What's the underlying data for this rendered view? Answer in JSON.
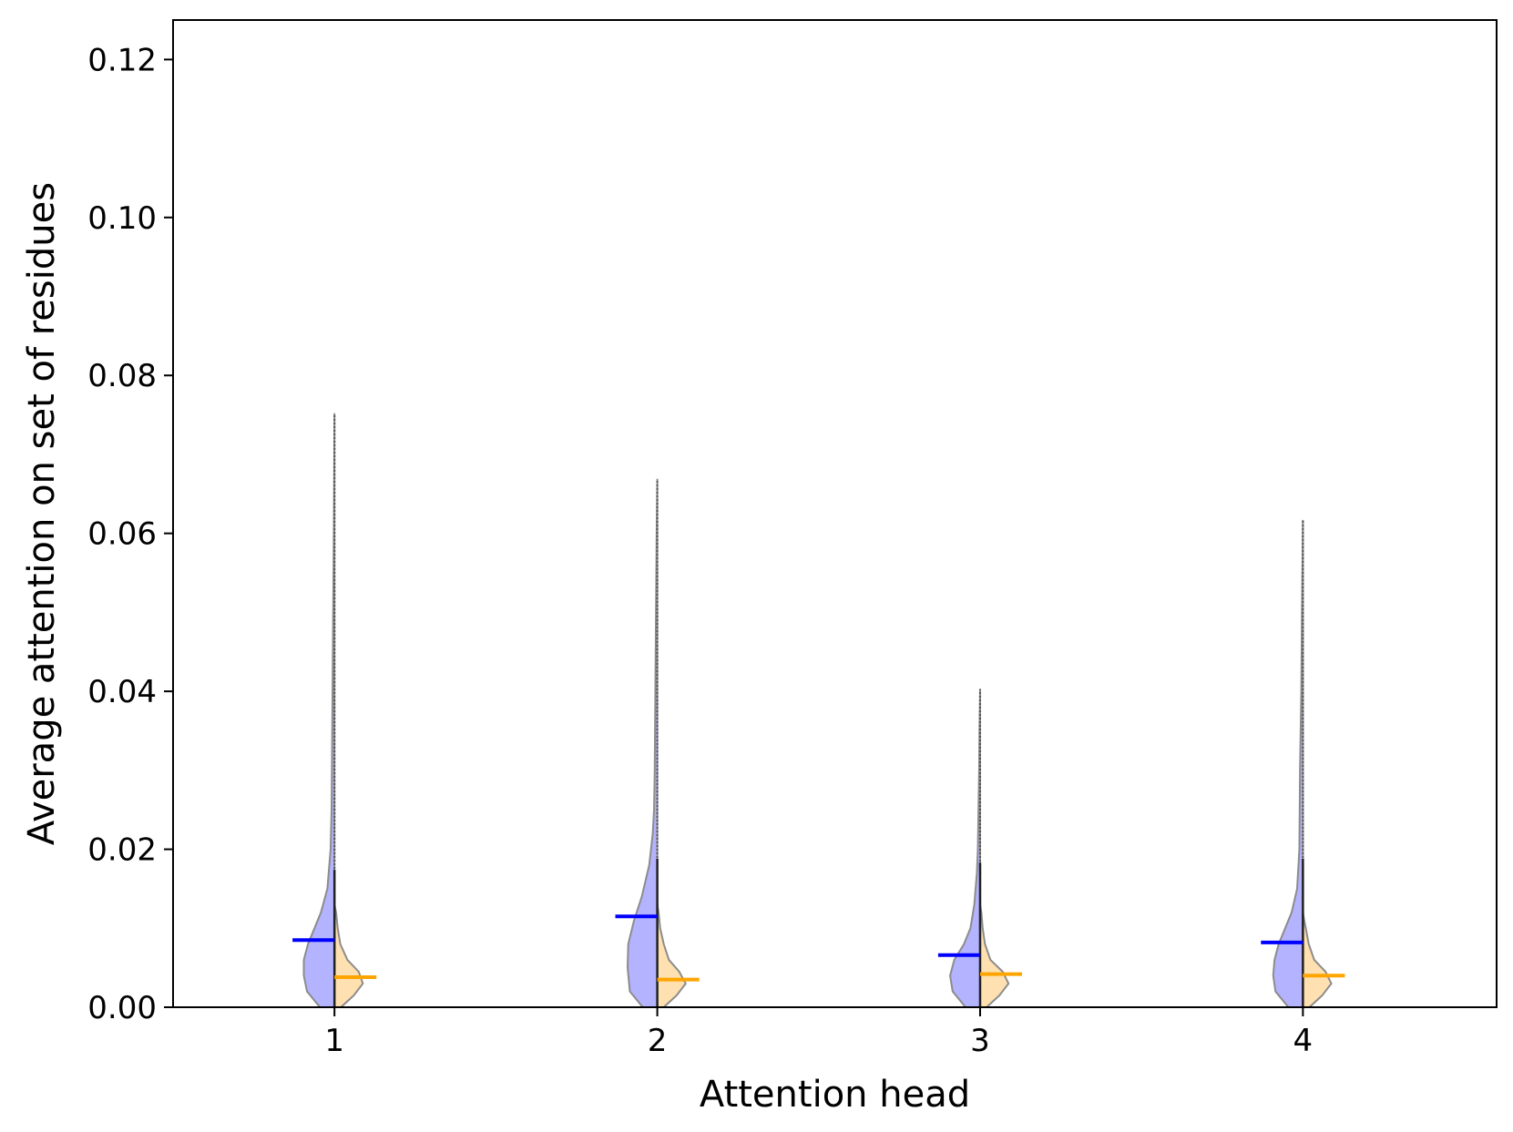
{
  "chart_data": {
    "type": "violin",
    "xlabel": "Attention head",
    "ylabel": "Average attention on set of residues",
    "ylim": [
      0,
      0.125
    ],
    "yticks": [
      "0.00",
      "0.02",
      "0.04",
      "0.06",
      "0.08",
      "0.10",
      "0.12"
    ],
    "categories": [
      "1",
      "2",
      "3",
      "4"
    ],
    "grid": false,
    "legend": "none",
    "colors": {
      "left_fill": "#b3b3ff",
      "left_median": "#0000ff",
      "right_fill": "#ffe0b0",
      "right_median": "#ffa500",
      "outline": "#8c8c8c"
    },
    "series": [
      {
        "side": "left",
        "medians": [
          0.0085,
          0.0115,
          0.0066,
          0.0082
        ],
        "maxima": [
          0.0752,
          0.0669,
          0.0403,
          0.0617
        ],
        "quartile_top": [
          0.0174,
          0.0188,
          0.0183,
          0.0188
        ],
        "profiles": [
          [
            [
              0,
              0.045
            ],
            [
              0.002,
              0.085
            ],
            [
              0.004,
              0.095
            ],
            [
              0.006,
              0.095
            ],
            [
              0.008,
              0.082
            ],
            [
              0.01,
              0.062
            ],
            [
              0.012,
              0.042
            ],
            [
              0.015,
              0.022
            ],
            [
              0.02,
              0.012
            ],
            [
              0.025,
              0.009
            ],
            [
              0.03,
              0.008
            ],
            [
              0.04,
              0.006
            ],
            [
              0.05,
              0.004
            ],
            [
              0.06,
              0.002
            ],
            [
              0.0752,
              0
            ]
          ],
          [
            [
              0,
              0.045
            ],
            [
              0.002,
              0.085
            ],
            [
              0.005,
              0.092
            ],
            [
              0.008,
              0.09
            ],
            [
              0.011,
              0.072
            ],
            [
              0.014,
              0.048
            ],
            [
              0.018,
              0.025
            ],
            [
              0.022,
              0.014
            ],
            [
              0.025,
              0.01
            ],
            [
              0.03,
              0.008
            ],
            [
              0.04,
              0.006
            ],
            [
              0.05,
              0.004
            ],
            [
              0.06,
              0.002
            ],
            [
              0.0669,
              0
            ]
          ],
          [
            [
              0,
              0.045
            ],
            [
              0.002,
              0.085
            ],
            [
              0.004,
              0.093
            ],
            [
              0.006,
              0.08
            ],
            [
              0.008,
              0.05
            ],
            [
              0.01,
              0.03
            ],
            [
              0.013,
              0.018
            ],
            [
              0.017,
              0.01
            ],
            [
              0.02,
              0.007
            ],
            [
              0.025,
              0.005
            ],
            [
              0.03,
              0.003
            ],
            [
              0.035,
              0.002
            ],
            [
              0.0403,
              0
            ]
          ],
          [
            [
              0,
              0.045
            ],
            [
              0.002,
              0.085
            ],
            [
              0.004,
              0.092
            ],
            [
              0.006,
              0.088
            ],
            [
              0.008,
              0.075
            ],
            [
              0.01,
              0.055
            ],
            [
              0.012,
              0.035
            ],
            [
              0.015,
              0.018
            ],
            [
              0.02,
              0.011
            ],
            [
              0.025,
              0.01
            ],
            [
              0.03,
              0.009
            ],
            [
              0.035,
              0.007
            ],
            [
              0.04,
              0.005
            ],
            [
              0.05,
              0.003
            ],
            [
              0.0617,
              0
            ]
          ]
        ]
      },
      {
        "side": "right",
        "medians": [
          0.0038,
          0.0035,
          0.0042,
          0.004
        ],
        "profiles": [
          [
            [
              0,
              0.02
            ],
            [
              0.0015,
              0.06
            ],
            [
              0.003,
              0.088
            ],
            [
              0.0045,
              0.075
            ],
            [
              0.006,
              0.04
            ],
            [
              0.008,
              0.018
            ],
            [
              0.01,
              0.01
            ],
            [
              0.012,
              0.005
            ],
            [
              0.013,
              0
            ]
          ],
          [
            [
              0,
              0.02
            ],
            [
              0.0015,
              0.06
            ],
            [
              0.003,
              0.088
            ],
            [
              0.0045,
              0.068
            ],
            [
              0.006,
              0.036
            ],
            [
              0.008,
              0.02
            ],
            [
              0.01,
              0.009
            ],
            [
              0.012,
              0.004
            ],
            [
              0.013,
              0
            ]
          ],
          [
            [
              0,
              0.02
            ],
            [
              0.0015,
              0.06
            ],
            [
              0.003,
              0.088
            ],
            [
              0.0045,
              0.07
            ],
            [
              0.006,
              0.032
            ],
            [
              0.008,
              0.015
            ],
            [
              0.01,
              0.008
            ],
            [
              0.012,
              0.004
            ],
            [
              0.013,
              0
            ]
          ],
          [
            [
              0,
              0.02
            ],
            [
              0.0015,
              0.06
            ],
            [
              0.003,
              0.088
            ],
            [
              0.0045,
              0.07
            ],
            [
              0.006,
              0.035
            ],
            [
              0.008,
              0.018
            ],
            [
              0.01,
              0.009
            ],
            [
              0.011,
              0.004
            ],
            [
              0.012,
              0
            ]
          ]
        ]
      }
    ]
  }
}
